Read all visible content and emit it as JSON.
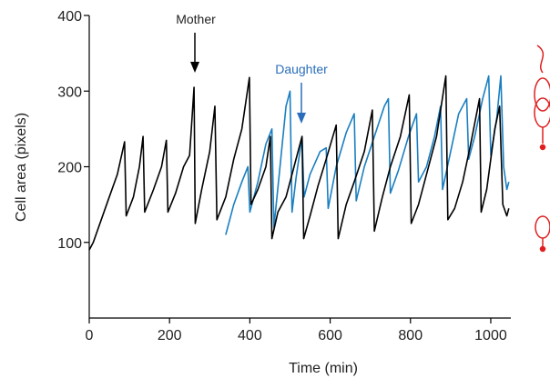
{
  "chart_data": {
    "type": "line",
    "x_label": "Time (min)",
    "y_label": "Cell area (pixels)",
    "xlim": [
      0,
      1050
    ],
    "xticks": [
      0,
      200,
      400,
      600,
      800,
      1000
    ],
    "ylim": [
      0,
      400
    ],
    "yticks": [
      100,
      200,
      300,
      400
    ],
    "annotations": [
      "Mother",
      "Daughter"
    ],
    "series": [
      {
        "name": "Mother",
        "color": "#000000",
        "x": [
          0,
          10,
          30,
          50,
          70,
          88,
          92,
          110,
          125,
          134,
          138,
          160,
          180,
          192,
          196,
          215,
          235,
          250,
          261,
          264,
          280,
          300,
          313,
          318,
          340,
          360,
          380,
          399,
          403,
          420,
          440,
          451,
          455,
          470,
          490,
          510,
          530,
          534,
          550,
          570,
          590,
          615,
          620,
          640,
          660,
          685,
          705,
          710,
          730,
          750,
          775,
          797,
          802,
          820,
          840,
          865,
          888,
          893,
          910,
          930,
          950,
          972,
          976,
          990,
          1010,
          1022,
          1030,
          1040,
          1045
        ],
        "values": [
          90,
          100,
          130,
          160,
          190,
          233,
          135,
          160,
          200,
          240,
          140,
          170,
          200,
          235,
          140,
          165,
          200,
          215,
          305,
          125,
          170,
          220,
          280,
          130,
          160,
          210,
          250,
          318,
          150,
          170,
          200,
          240,
          105,
          140,
          160,
          200,
          240,
          105,
          135,
          175,
          210,
          255,
          105,
          150,
          180,
          220,
          275,
          115,
          160,
          200,
          240,
          295,
          125,
          150,
          190,
          240,
          320,
          130,
          145,
          180,
          230,
          290,
          140,
          170,
          250,
          280,
          150,
          135,
          145
        ]
      },
      {
        "name": "Daughter",
        "color": "#1a7fc1",
        "x": [
          340,
          360,
          380,
          395,
          400,
          420,
          440,
          455,
          460,
          475,
          490,
          500,
          505,
          515,
          530,
          535,
          550,
          575,
          590,
          595,
          615,
          640,
          660,
          665,
          685,
          710,
          735,
          745,
          750,
          770,
          795,
          815,
          820,
          840,
          860,
          875,
          880,
          900,
          920,
          940,
          945,
          960,
          980,
          995,
          1000,
          1015,
          1025,
          1032,
          1040,
          1045
        ],
        "values": [
          110,
          150,
          180,
          200,
          140,
          180,
          230,
          250,
          120,
          200,
          280,
          300,
          140,
          185,
          240,
          160,
          190,
          220,
          225,
          145,
          200,
          245,
          270,
          155,
          200,
          240,
          280,
          290,
          165,
          195,
          240,
          270,
          180,
          200,
          240,
          280,
          170,
          220,
          270,
          290,
          210,
          240,
          290,
          320,
          215,
          265,
          320,
          200,
          170,
          180
        ]
      }
    ]
  }
}
